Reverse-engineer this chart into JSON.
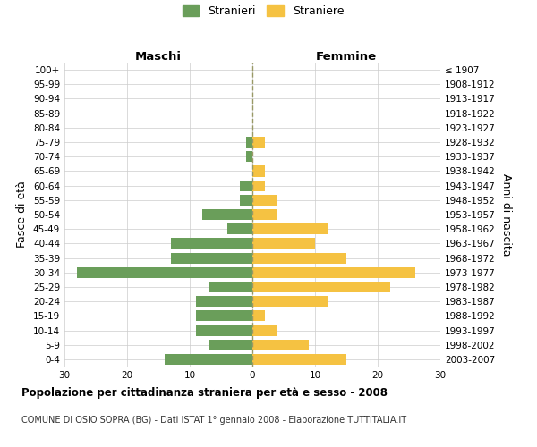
{
  "age_groups": [
    "100+",
    "95-99",
    "90-94",
    "85-89",
    "80-84",
    "75-79",
    "70-74",
    "65-69",
    "60-64",
    "55-59",
    "50-54",
    "45-49",
    "40-44",
    "35-39",
    "30-34",
    "25-29",
    "20-24",
    "15-19",
    "10-14",
    "5-9",
    "0-4"
  ],
  "birth_years": [
    "≤ 1907",
    "1908-1912",
    "1913-1917",
    "1918-1922",
    "1923-1927",
    "1928-1932",
    "1933-1937",
    "1938-1942",
    "1943-1947",
    "1948-1952",
    "1953-1957",
    "1958-1962",
    "1963-1967",
    "1968-1972",
    "1973-1977",
    "1978-1982",
    "1983-1987",
    "1988-1992",
    "1993-1997",
    "1998-2002",
    "2003-2007"
  ],
  "maschi": [
    0,
    0,
    0,
    0,
    0,
    1,
    1,
    0,
    2,
    2,
    8,
    4,
    13,
    13,
    28,
    7,
    9,
    9,
    9,
    7,
    14
  ],
  "femmine": [
    0,
    0,
    0,
    0,
    0,
    2,
    0,
    2,
    2,
    4,
    4,
    12,
    10,
    15,
    26,
    22,
    12,
    2,
    4,
    9,
    15
  ],
  "maschi_color": "#6a9e5a",
  "femmine_color": "#f5c242",
  "background_color": "#ffffff",
  "grid_color": "#cccccc",
  "dashed_line_color": "#999966",
  "title": "Popolazione per cittadinanza straniera per età e sesso - 2008",
  "subtitle": "COMUNE DI OSIO SOPRA (BG) - Dati ISTAT 1° gennaio 2008 - Elaborazione TUTTITALIA.IT",
  "ylabel_left": "Fasce di età",
  "ylabel_right": "Anni di nascita",
  "xlabel_left": "Maschi",
  "xlabel_top_right": "Femmine",
  "legend_stranieri": "Stranieri",
  "legend_straniere": "Straniere",
  "xlim": 30,
  "tick_fontsize": 7.5,
  "label_fontsize": 9
}
